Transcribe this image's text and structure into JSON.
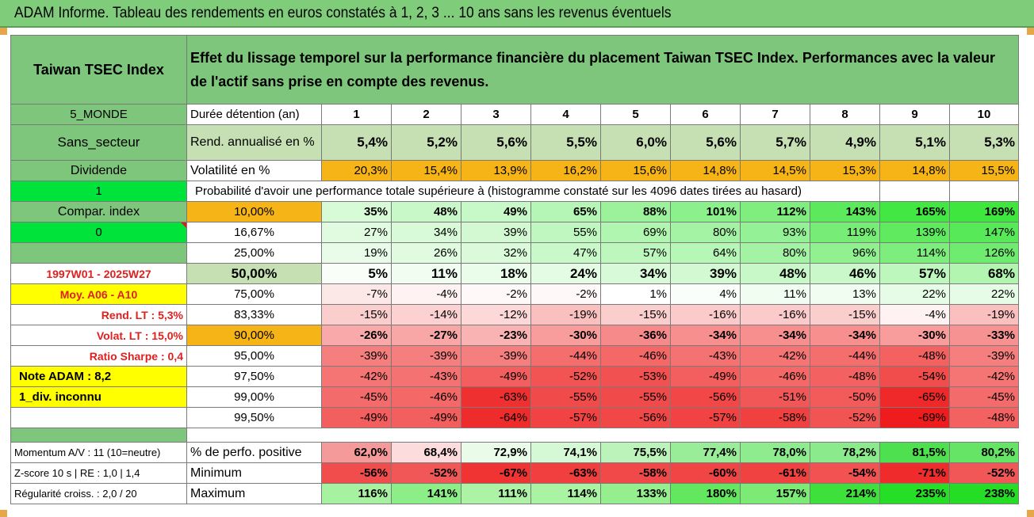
{
  "title": "ADAM Informe. Tableau des rendements en euros constatés à 1, 2, 3 ... 10 ans sans les revenus éventuels",
  "index_name": "Taiwan TSEC Index",
  "description": "Effet du lissage temporel sur la performance financière du placement Taiwan TSEC Index. Performances avec la valeur de l'actif sans prise en compte des revenus.",
  "left_labels": {
    "zone": "5_MONDE",
    "secteur": "Sans_secteur",
    "dividende": "Dividende",
    "one": "1",
    "compar": "Compar. index",
    "zero": "0",
    "period": "1997W01 - 2025W27",
    "moy": "Moy. A06 - A10",
    "rend_lt": "Rend. LT :   5,3%",
    "volat_lt": "Volat. LT :   15,0%",
    "sharpe": "Ratio Sharpe :   0,4",
    "note": "Note ADAM : 8,2",
    "div": "1_div. inconnu"
  },
  "row_labels": {
    "duree": "Durée détention (an)",
    "rend": "Rend. annualisé en %",
    "vol": "Volatilité en %",
    "proba": "Probabilité d'avoir une performance totale supérieure à (histogramme constaté sur les 4096 dates tirées au hasard)",
    "pct_pos": "% de perfo. positive",
    "min": "Minimum",
    "max": "Maximum"
  },
  "bottom_labels": {
    "momentum": "Momentum A/V : 11 (10=neutre)",
    "zscore": "Z-score 10 s | RE : 1,0 | 1,4",
    "regularite": "Régularité croiss. : 2,0 / 20"
  },
  "years": [
    "1",
    "2",
    "3",
    "4",
    "5",
    "6",
    "7",
    "8",
    "9",
    "10"
  ],
  "rend_annualise": [
    "5,4%",
    "5,2%",
    "5,6%",
    "5,5%",
    "6,0%",
    "5,6%",
    "5,7%",
    "4,9%",
    "5,1%",
    "5,3%"
  ],
  "volatilite": [
    "20,3%",
    "15,4%",
    "13,9%",
    "16,2%",
    "15,6%",
    "14,8%",
    "14,5%",
    "15,3%",
    "14,8%",
    "15,5%"
  ],
  "prob_rows": [
    {
      "threshold": "10,00%",
      "values": [
        "35%",
        "48%",
        "49%",
        "65%",
        "88%",
        "101%",
        "112%",
        "143%",
        "165%",
        "169%"
      ]
    },
    {
      "threshold": "16,67%",
      "values": [
        "27%",
        "34%",
        "39%",
        "55%",
        "69%",
        "80%",
        "93%",
        "119%",
        "139%",
        "147%"
      ]
    },
    {
      "threshold": "25,00%",
      "values": [
        "19%",
        "26%",
        "32%",
        "47%",
        "57%",
        "64%",
        "80%",
        "96%",
        "114%",
        "126%"
      ]
    },
    {
      "threshold": "50,00%",
      "values": [
        "5%",
        "11%",
        "18%",
        "24%",
        "34%",
        "39%",
        "48%",
        "46%",
        "57%",
        "68%"
      ]
    },
    {
      "threshold": "75,00%",
      "values": [
        "-7%",
        "-4%",
        "-2%",
        "-2%",
        "1%",
        "4%",
        "11%",
        "13%",
        "22%",
        "22%"
      ]
    },
    {
      "threshold": "83,33%",
      "values": [
        "-15%",
        "-14%",
        "-12%",
        "-19%",
        "-15%",
        "-16%",
        "-16%",
        "-15%",
        "-4%",
        "-19%"
      ]
    },
    {
      "threshold": "90,00%",
      "values": [
        "-26%",
        "-27%",
        "-23%",
        "-30%",
        "-36%",
        "-34%",
        "-34%",
        "-34%",
        "-30%",
        "-33%"
      ]
    },
    {
      "threshold": "95,00%",
      "values": [
        "-39%",
        "-39%",
        "-39%",
        "-44%",
        "-46%",
        "-43%",
        "-42%",
        "-44%",
        "-48%",
        "-39%"
      ]
    },
    {
      "threshold": "97,50%",
      "values": [
        "-42%",
        "-43%",
        "-49%",
        "-52%",
        "-53%",
        "-49%",
        "-46%",
        "-48%",
        "-54%",
        "-42%"
      ]
    },
    {
      "threshold": "99,00%",
      "values": [
        "-45%",
        "-46%",
        "-63%",
        "-55%",
        "-55%",
        "-56%",
        "-51%",
        "-50%",
        "-65%",
        "-45%"
      ]
    },
    {
      "threshold": "99,50%",
      "values": [
        "-49%",
        "-49%",
        "-64%",
        "-57%",
        "-56%",
        "-57%",
        "-58%",
        "-52%",
        "-69%",
        "-48%"
      ]
    }
  ],
  "pct_positive": [
    "62,0%",
    "68,4%",
    "72,9%",
    "74,1%",
    "75,5%",
    "77,4%",
    "78,0%",
    "78,2%",
    "81,5%",
    "80,2%"
  ],
  "minimum": [
    "-56%",
    "-52%",
    "-67%",
    "-63%",
    "-58%",
    "-60%",
    "-61%",
    "-54%",
    "-71%",
    "-52%"
  ],
  "maximum": [
    "116%",
    "141%",
    "111%",
    "114%",
    "133%",
    "180%",
    "157%",
    "214%",
    "235%",
    "238%"
  ],
  "colors": {
    "header_green": "#7fc67d",
    "light_green": "#c6e0b4",
    "orange": "#f7b417",
    "yellow": "#ffff00",
    "bright_green": "#00e33a",
    "red": "#e21a1a"
  }
}
